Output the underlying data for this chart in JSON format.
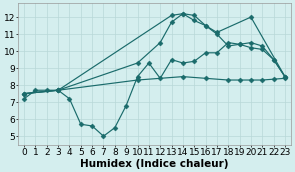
{
  "lines": [
    {
      "x": [
        0,
        1,
        2,
        3,
        4,
        5,
        6,
        7,
        8,
        9,
        10,
        11,
        12,
        13,
        14,
        15,
        16,
        17,
        18,
        19,
        20,
        21,
        22,
        23
      ],
      "y": [
        7.2,
        7.7,
        7.7,
        7.7,
        7.2,
        5.7,
        5.6,
        5.0,
        5.5,
        6.8,
        8.5,
        9.3,
        8.4,
        9.5,
        9.3,
        9.4,
        9.9,
        9.9,
        10.5,
        10.4,
        10.2,
        10.1,
        9.5,
        8.5
      ]
    },
    {
      "x": [
        0,
        3,
        13,
        14,
        15,
        16,
        17,
        20,
        23
      ],
      "y": [
        7.5,
        7.7,
        12.1,
        12.2,
        11.8,
        11.5,
        11.1,
        12.0,
        8.5
      ]
    },
    {
      "x": [
        0,
        3,
        10,
        12,
        13,
        14,
        15,
        16,
        17,
        18,
        19,
        20,
        21,
        22,
        23
      ],
      "y": [
        7.5,
        7.7,
        9.3,
        10.5,
        11.7,
        12.2,
        12.1,
        11.5,
        11.0,
        10.3,
        10.4,
        10.5,
        10.3,
        9.5,
        8.5
      ]
    },
    {
      "x": [
        0,
        3,
        10,
        14,
        16,
        18,
        19,
        20,
        21,
        22,
        23
      ],
      "y": [
        7.5,
        7.7,
        8.3,
        8.5,
        8.4,
        8.3,
        8.3,
        8.3,
        8.3,
        8.35,
        8.4
      ]
    }
  ],
  "color": "#1a6b6b",
  "bg_color": "#d4eeee",
  "grid_color": "#b8d8d8",
  "xlabel": "Humidex (Indice chaleur)",
  "xlim": [
    -0.5,
    23.5
  ],
  "ylim": [
    4.5,
    12.8
  ],
  "yticks": [
    5,
    6,
    7,
    8,
    9,
    10,
    11,
    12
  ],
  "xticks": [
    0,
    1,
    2,
    3,
    4,
    5,
    6,
    7,
    8,
    9,
    10,
    11,
    12,
    13,
    14,
    15,
    16,
    17,
    18,
    19,
    20,
    21,
    22,
    23
  ],
  "xlabel_fontsize": 7.5,
  "tick_fontsize": 6.5,
  "linewidth": 0.85,
  "markersize": 2.5
}
